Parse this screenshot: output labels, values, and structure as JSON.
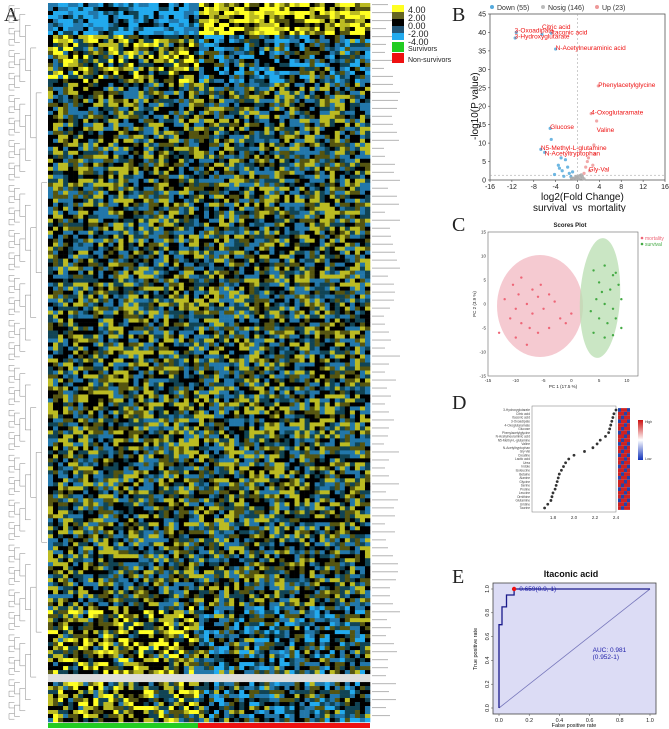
{
  "figure": {
    "panel_labels": [
      "A",
      "B",
      "C",
      "D",
      "E"
    ]
  },
  "heatmap": {
    "legend_values": [
      "4.00",
      "2.00",
      "0.00",
      "-2.00",
      "-4.00"
    ],
    "groups": [
      {
        "label": "Survivors",
        "color": "#22cc22"
      },
      {
        "label": "Non-survivors",
        "color": "#ee1111"
      }
    ],
    "colors": {
      "high": "#ffff22",
      "mid": "#000000",
      "low": "#22aaee"
    }
  },
  "volcano": {
    "legend": [
      {
        "label": "Down (55)",
        "color": "#55aadd"
      },
      {
        "label": "Nosig (146)",
        "color": "#bbbbbb"
      },
      {
        "label": "Up (23)",
        "color": "#ee9999"
      }
    ],
    "ylabel": "-log10(P value)",
    "xlabel": "log2(Fold Change)",
    "subtitle": "survival_vs_mortality",
    "annotations": [
      "3-Oxoadipate",
      "3-Hydroxyglutarate",
      "Citric acid",
      "Itaconic acid",
      "N-Acetylneuraminic acid",
      "Phenylacetylglycine",
      "4-Oxoglutaramate",
      "Glucose",
      "Valine",
      "N5-Methyl-L-glutamine",
      "N-Acetyltryptophan",
      "Gly-Val"
    ]
  },
  "chart_data": [
    {
      "type": "scatter",
      "panel": "B",
      "title": "",
      "xlabel": "log2(Fold Change)",
      "ylabel": "-log10(P value)",
      "xlim": [
        -16,
        16
      ],
      "ylim": [
        0,
        45
      ],
      "xticks": [
        -16,
        -12,
        -8,
        -4,
        0,
        4,
        8,
        12,
        16
      ],
      "yticks": [
        0,
        5,
        10,
        15,
        20,
        25,
        30,
        35,
        40,
        45
      ],
      "series": [
        {
          "name": "Down (55)",
          "points": [
            [
              -11.2,
              40
            ],
            [
              -11.4,
              38.5
            ],
            [
              -6.5,
              39.5
            ],
            [
              -4.8,
              39.8
            ],
            [
              -4,
              35.5
            ],
            [
              -5,
              14
            ],
            [
              -4.8,
              11
            ],
            [
              -6.7,
              8.3
            ],
            [
              -6,
              7.5
            ],
            [
              -3.5,
              4
            ],
            [
              -2.8,
              2.5
            ],
            [
              -1.5,
              1.8
            ],
            [
              -2.2,
              5.5
            ],
            [
              -3.3,
              3.2
            ],
            [
              -1.2,
              0.9
            ],
            [
              -0.9,
              2.2
            ],
            [
              -4.2,
              1.5
            ],
            [
              -2.5,
              1
            ],
            [
              -1.8,
              3.5
            ],
            [
              -3,
              6
            ]
          ]
        },
        {
          "name": "Up (23)",
          "points": [
            [
              3.8,
              25.5
            ],
            [
              2.5,
              18
            ],
            [
              3.5,
              16
            ],
            [
              3,
              9.5
            ],
            [
              2,
              6
            ],
            [
              1.5,
              3.5
            ],
            [
              2.8,
              4
            ],
            [
              1.2,
              1.8
            ],
            [
              2.2,
              2.5
            ],
            [
              1.8,
              5
            ],
            [
              3.2,
              7
            ]
          ]
        },
        {
          "name": "Nosig (146)",
          "points": [
            [
              0.2,
              0.3
            ],
            [
              -0.5,
              0.6
            ],
            [
              0.6,
              0.5
            ],
            [
              -0.2,
              1
            ],
            [
              0.9,
              0.8
            ],
            [
              -0.8,
              0.4
            ],
            [
              0.4,
              1.2
            ],
            [
              -0.3,
              0.2
            ],
            [
              1.2,
              0.3
            ],
            [
              -1.1,
              0.5
            ],
            [
              0,
              0.7
            ],
            [
              0.7,
              1.4
            ]
          ]
        }
      ],
      "labels": [
        {
          "text": "3-Oxoadipate",
          "x": -11.5,
          "y": 40
        },
        {
          "text": "3-Hydroxyglutarate",
          "x": -11.5,
          "y": 38.3
        },
        {
          "text": "Citric acid",
          "x": -6.5,
          "y": 41
        },
        {
          "text": "Itaconic acid",
          "x": -4.8,
          "y": 39.5
        },
        {
          "text": "N-Acetylneuraminic acid",
          "x": -4,
          "y": 35.3
        },
        {
          "text": "Phenylacetylglycine",
          "x": 3.8,
          "y": 25.2
        },
        {
          "text": "4-Oxoglutaramate",
          "x": 2.5,
          "y": 17.7
        },
        {
          "text": "Glucose",
          "x": -5,
          "y": 13.8
        },
        {
          "text": "Valine",
          "x": 3.5,
          "y": 13
        },
        {
          "text": "N5-Methyl-L-glutamine",
          "x": -6.7,
          "y": 8.2
        },
        {
          "text": "N-Acetyltryptophan",
          "x": -6,
          "y": 6.7
        },
        {
          "text": "Gly-Val",
          "x": 2,
          "y": 2.3
        }
      ]
    },
    {
      "type": "scatter",
      "panel": "C",
      "title": "Scores Plot",
      "xlabel": "PC 1 (17.5 %)",
      "ylabel": "PC 2 (3.9 %)",
      "xlim": [
        -15,
        12
      ],
      "ylim": [
        -15,
        15
      ],
      "xticks": [
        -15,
        -10,
        -5,
        0,
        5,
        10
      ],
      "yticks": [
        -15,
        -10,
        -5,
        0,
        5,
        10,
        15
      ],
      "legend": [
        {
          "label": "mortality",
          "color": "#ee6677"
        },
        {
          "label": "survival",
          "color": "#44aa44"
        }
      ],
      "series": [
        {
          "name": "mortality",
          "points": [
            [
              -10.5,
              4
            ],
            [
              -9,
              5.5
            ],
            [
              -7,
              3
            ],
            [
              -12,
              1
            ],
            [
              -10,
              -1
            ],
            [
              -8,
              0
            ],
            [
              -6,
              1.5
            ],
            [
              -4,
              2
            ],
            [
              -11,
              -3
            ],
            [
              -9,
              -4
            ],
            [
              -7,
              -2
            ],
            [
              -5,
              -1
            ],
            [
              -3,
              0.5
            ],
            [
              -2,
              -3
            ],
            [
              -10,
              -7
            ],
            [
              -8,
              -8.5
            ],
            [
              -6,
              -6
            ],
            [
              -4,
              -5
            ],
            [
              -1,
              -4
            ],
            [
              -13,
              -6
            ],
            [
              -9.5,
              2
            ],
            [
              -7.5,
              -5
            ],
            [
              -5.5,
              4
            ],
            [
              0,
              -2
            ]
          ]
        },
        {
          "name": "survival",
          "points": [
            [
              4,
              7
            ],
            [
              6,
              8
            ],
            [
              7.5,
              6
            ],
            [
              5,
              4.5
            ],
            [
              7,
              3
            ],
            [
              8.5,
              4
            ],
            [
              4.5,
              1
            ],
            [
              6,
              0
            ],
            [
              7.5,
              -1
            ],
            [
              9,
              1
            ],
            [
              5,
              -3
            ],
            [
              6.5,
              -4
            ],
            [
              8,
              -3
            ],
            [
              4,
              -6
            ],
            [
              6,
              -7
            ],
            [
              7.5,
              -6.5
            ],
            [
              9,
              -5
            ],
            [
              5.5,
              2.5
            ],
            [
              3.5,
              -1.5
            ],
            [
              8,
              6.5
            ]
          ]
        }
      ]
    },
    {
      "type": "scatter",
      "panel": "D",
      "title": "",
      "xlabel": "",
      "ylabel": "",
      "xlim": [
        1.6,
        2.4
      ],
      "xticks": [
        1.8,
        2.0,
        2.2,
        2.4
      ],
      "categories": [
        "3-Hydroxyglutarate",
        "Citric acid",
        "Itaconic acid",
        "3-Oxoadipate",
        "4-Oxoglutaramate",
        "Glucose",
        "Phenylacetylglycine",
        "N-Acetylneuraminic acid",
        "N5-Methyl-L-glutamine",
        "Valine",
        "N-Acetyltryptophan",
        "Gly-Val",
        "Creatine",
        "Lactic acid",
        "Urea",
        "Indole",
        "Isoleucine",
        "Betaine",
        "Alanine",
        "Glycine",
        "Serine",
        "Proline",
        "Leucine",
        "Ornithine",
        "Glutamine",
        "Uridine",
        "Taurine"
      ],
      "values": [
        2.4,
        2.38,
        2.37,
        2.36,
        2.35,
        2.34,
        2.33,
        2.3,
        2.25,
        2.22,
        2.18,
        2.1,
        2.0,
        1.95,
        1.92,
        1.9,
        1.88,
        1.86,
        1.85,
        1.84,
        1.83,
        1.82,
        1.8,
        1.79,
        1.78,
        1.75,
        1.72
      ],
      "legend": [
        "High",
        "Low"
      ]
    },
    {
      "type": "line",
      "panel": "E",
      "title": "Itaconic acid",
      "xlabel": "False positive rate",
      "ylabel": "True positive rate",
      "xlim": [
        0,
        1
      ],
      "ylim": [
        0,
        1
      ],
      "xticks": [
        0.0,
        0.2,
        0.4,
        0.6,
        0.8,
        1.0
      ],
      "yticks": [
        0.0,
        0.2,
        0.4,
        0.6,
        0.8,
        1.0
      ],
      "series": [
        {
          "name": "ROC",
          "x": [
            0,
            0,
            0.02,
            0.02,
            0.05,
            0.05,
            0.1,
            0.1,
            1
          ],
          "y": [
            0,
            0.7,
            0.7,
            0.85,
            0.85,
            0.95,
            0.95,
            1,
            1
          ]
        },
        {
          "name": "",
          "x": [
            0,
            1
          ],
          "y": [
            0,
            1
          ]
        }
      ],
      "threshold_label": "-0.659(0.9, 1)",
      "threshold_point": {
        "x": 0.1,
        "y": 1
      },
      "auc_label": "AUC: 0.981",
      "ci_label": "(0.952-1)"
    }
  ]
}
